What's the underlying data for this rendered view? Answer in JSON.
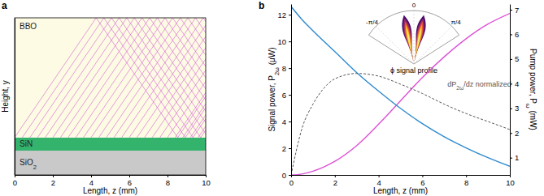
{
  "chart_data": [
    {
      "type": "ray_trace",
      "title": "a",
      "x_label": "Length, z (mm)",
      "y_label": "Height, y",
      "xlim": [
        0,
        10
      ],
      "xticks": [
        0,
        2,
        4,
        6,
        8,
        10
      ],
      "ylim": [
        0,
        8.4
      ],
      "tick_labels": "x",
      "layers": [
        {
          "name": "SiO2",
          "color": "#c9c9c9",
          "y_range": [
            0,
            1.3
          ]
        },
        {
          "name": "SiN",
          "color": "#33b36b",
          "y_range": [
            1.3,
            2.0
          ]
        },
        {
          "name": "BBO",
          "color": "#fdfbe4",
          "y_range": [
            2.0,
            8.4
          ]
        }
      ],
      "rays": {
        "color": "#d45ad4",
        "slope": 1.5,
        "z_start": [
          0,
          0.4,
          0.8,
          1.2,
          1.6,
          2.0,
          2.4,
          2.8,
          3.2,
          3.6,
          4.0,
          4.4,
          4.8,
          5.2,
          5.6,
          6.0,
          6.4,
          6.8,
          7.2,
          7.6,
          8.0,
          8.4,
          8.8,
          9.2,
          9.6
        ]
      }
    },
    {
      "type": "line",
      "title": "b",
      "x_label": "Length, z (mm)",
      "y_label": "Signal power, P2ω (μW)",
      "y2_label": "Pump power, Pω (mW)",
      "x": [
        0,
        0.5,
        1,
        1.5,
        2,
        3,
        4,
        5,
        6,
        7,
        8,
        9,
        10
      ],
      "xlim": [
        0,
        10
      ],
      "xticks": [
        0,
        2,
        4,
        6,
        8,
        10
      ],
      "ylim": [
        0,
        12.8
      ],
      "yticks": [
        0,
        2,
        4,
        6,
        8,
        10,
        12
      ],
      "y2lim": [
        0.3,
        7.23
      ],
      "y2ticks": [
        1,
        2,
        3,
        4,
        5,
        6,
        7
      ],
      "series": [
        {
          "color": "#dc52d6",
          "values": [
            0,
            0.07,
            0.28,
            0.6,
            1.02,
            2.2,
            3.8,
            5.55,
            7.3,
            8.85,
            10.2,
            11.3,
            12.1
          ]
        },
        {
          "color": "#2f8ad0",
          "axis": "y2",
          "values": [
            7.13,
            6.6,
            6.15,
            5.72,
            5.3,
            4.45,
            3.7,
            3.0,
            2.38,
            1.85,
            1.4,
            1.0,
            0.65
          ]
        },
        {
          "name": "dP2ω/dz normalized",
          "color": "#555555",
          "line_style": "dashed",
          "values": [
            0,
            3.5,
            5.3,
            6.5,
            7.2,
            7.6,
            7.4,
            6.8,
            6.1,
            5.3,
            4.6,
            4.0,
            3.4
          ]
        }
      ],
      "inset": {
        "type": "polar",
        "title": "ϕ signal profile",
        "theta_lim": [
          -1.0,
          1.0
        ],
        "theta_ticks": [
          {
            "value": -0.785,
            "label": "-π/4"
          },
          0,
          {
            "value": 0.785,
            "label": "π/4"
          }
        ],
        "lobes": [
          {
            "theta": -0.2,
            "width": 0.26
          },
          {
            "theta": 0.2,
            "width": 0.26
          }
        ]
      }
    }
  ]
}
